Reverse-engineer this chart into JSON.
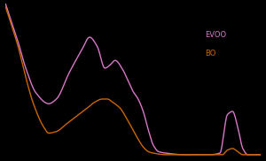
{
  "background_color": "#000000",
  "evoo_color": "#d878c8",
  "bo_color": "#cc6600",
  "legend_labels": [
    "EVOO",
    "BO"
  ],
  "xlim": [
    0,
    1
  ],
  "ylim": [
    0,
    1
  ]
}
